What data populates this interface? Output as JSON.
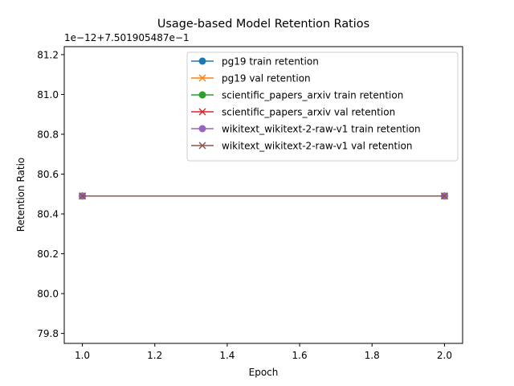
{
  "chart_data": {
    "type": "line",
    "title": "Usage-based Model Retention Ratios",
    "xlabel": "Epoch",
    "ylabel": "Retention Ratio",
    "offset_text": "1e−12+7.501905487e−1",
    "x": [
      1.0,
      2.0
    ],
    "xlim": [
      0.95,
      2.05
    ],
    "ylim": [
      79.75,
      81.24
    ],
    "xticks": [
      1.0,
      1.2,
      1.4,
      1.6,
      1.8,
      2.0
    ],
    "xtick_labels": [
      "1.0",
      "1.2",
      "1.4",
      "1.6",
      "1.8",
      "2.0"
    ],
    "yticks": [
      79.8,
      80.0,
      80.2,
      80.4,
      80.6,
      80.8,
      81.0,
      81.2
    ],
    "ytick_labels": [
      "79.8",
      "80.0",
      "80.2",
      "80.4",
      "80.6",
      "80.8",
      "81.0",
      "81.2"
    ],
    "grid": false,
    "legend_position": "upper-right",
    "series": [
      {
        "name": "pg19 train retention",
        "values": [
          80.49,
          80.49
        ],
        "color": "#1f77b4",
        "marker": "circle"
      },
      {
        "name": "pg19 val retention",
        "values": [
          80.49,
          80.49
        ],
        "color": "#ff7f0e",
        "marker": "x"
      },
      {
        "name": "scientific_papers_arxiv train retention",
        "values": [
          80.49,
          80.49
        ],
        "color": "#2ca02c",
        "marker": "circle"
      },
      {
        "name": "scientific_papers_arxiv val retention",
        "values": [
          80.49,
          80.49
        ],
        "color": "#d62728",
        "marker": "x"
      },
      {
        "name": "wikitext_wikitext-2-raw-v1 train retention",
        "values": [
          80.49,
          80.49
        ],
        "color": "#9467bd",
        "marker": "circle"
      },
      {
        "name": "wikitext_wikitext-2-raw-v1 val retention",
        "values": [
          80.49,
          80.49
        ],
        "color": "#8c564b",
        "marker": "x"
      }
    ]
  }
}
